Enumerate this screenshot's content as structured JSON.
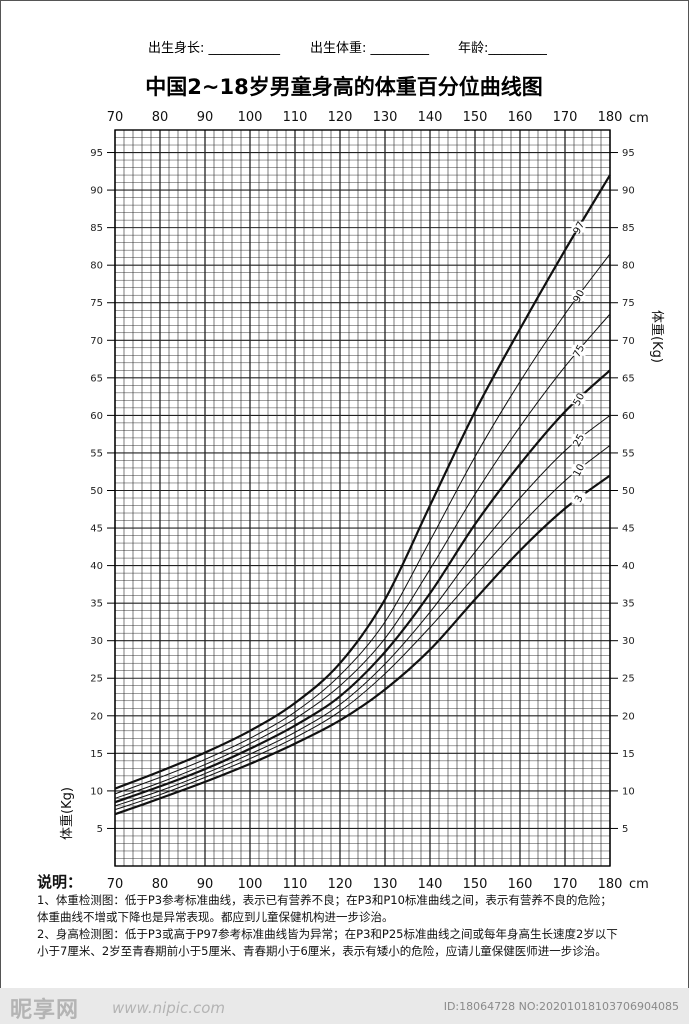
{
  "header": {
    "birth_length_label": "出生身长: ___________",
    "birth_weight_label": "出生体重: _________",
    "age_label": "年龄:_________"
  },
  "chart_data": {
    "type": "line",
    "title": "中国2~18岁男童身高的体重百分位曲线图",
    "x_unit": "cm",
    "xlabel": "",
    "ylabel": "体重(Kg)",
    "xlim": [
      70,
      180
    ],
    "ylim": [
      0,
      98
    ],
    "x_ticks": [
      "70",
      "80",
      "90",
      "100",
      "110",
      "120",
      "130",
      "140",
      "150",
      "160",
      "170",
      "180"
    ],
    "y_ticks": [
      "5",
      "10",
      "15",
      "20",
      "25",
      "30",
      "35",
      "40",
      "45",
      "50",
      "55",
      "60",
      "65",
      "70",
      "75",
      "80",
      "85",
      "90",
      "95"
    ],
    "grid": true,
    "x": [
      70,
      80,
      90,
      100,
      110,
      120,
      130,
      140,
      150,
      160,
      170,
      180
    ],
    "series": [
      {
        "name": "97",
        "values": [
          10.3,
          12.6,
          15.1,
          18.0,
          21.7,
          27.0,
          35.5,
          48.0,
          60.5,
          71.5,
          82.0,
          92.0
        ]
      },
      {
        "name": "90",
        "values": [
          9.6,
          11.8,
          14.2,
          17.0,
          20.5,
          25.4,
          32.5,
          43.3,
          54.5,
          64.5,
          73.5,
          81.5
        ]
      },
      {
        "name": "75",
        "values": [
          9.0,
          11.1,
          13.5,
          16.3,
          19.6,
          24.0,
          30.3,
          39.5,
          49.5,
          58.5,
          66.5,
          73.5
        ]
      },
      {
        "name": "50",
        "values": [
          8.5,
          10.6,
          12.9,
          15.6,
          18.7,
          22.6,
          28.5,
          36.3,
          45.5,
          53.5,
          60.5,
          66.0
        ]
      },
      {
        "name": "25",
        "values": [
          8.0,
          10.0,
          12.3,
          14.9,
          17.8,
          21.5,
          26.9,
          33.8,
          41.8,
          49.0,
          55.3,
          60.0
        ]
      },
      {
        "name": "10",
        "values": [
          7.5,
          9.5,
          11.8,
          14.3,
          17.1,
          20.6,
          25.6,
          31.8,
          38.6,
          45.3,
          51.3,
          56.0
        ]
      },
      {
        "name": "3",
        "values": [
          6.9,
          9.0,
          11.2,
          13.6,
          16.3,
          19.4,
          23.5,
          28.8,
          35.5,
          42.0,
          47.6,
          52.0
        ]
      }
    ]
  },
  "notes": {
    "heading": "说明：",
    "item1_line1": "1、体重检测图：低于P3参考标准曲线，表示已有营养不良；在P3和P10标准曲线之间，表示有营养不良的危险；",
    "item1_line2": "体重曲线不增或下降也是异常表现。都应到儿童保健机构进一步诊治。",
    "item2_line1": "2、身高检测图：低于P3或高于P97参考标准曲线皆为异常；在P3和P25标准曲线之间或每年身高生长速度2岁以下",
    "item2_line2": "小于7厘米、2岁至青春期前小于5厘米、青春期小于6厘米，表示有矮小的危险，应请儿童保健医师进一步诊治。"
  },
  "watermark": {
    "logo": "昵享网",
    "site": "www.nipic.com",
    "id_text": "ID:18064728 NO:20201018103706904085"
  },
  "colors": {
    "grid": "#222222",
    "curve": "#111111",
    "watermark_bg": "#e9e9e9"
  }
}
